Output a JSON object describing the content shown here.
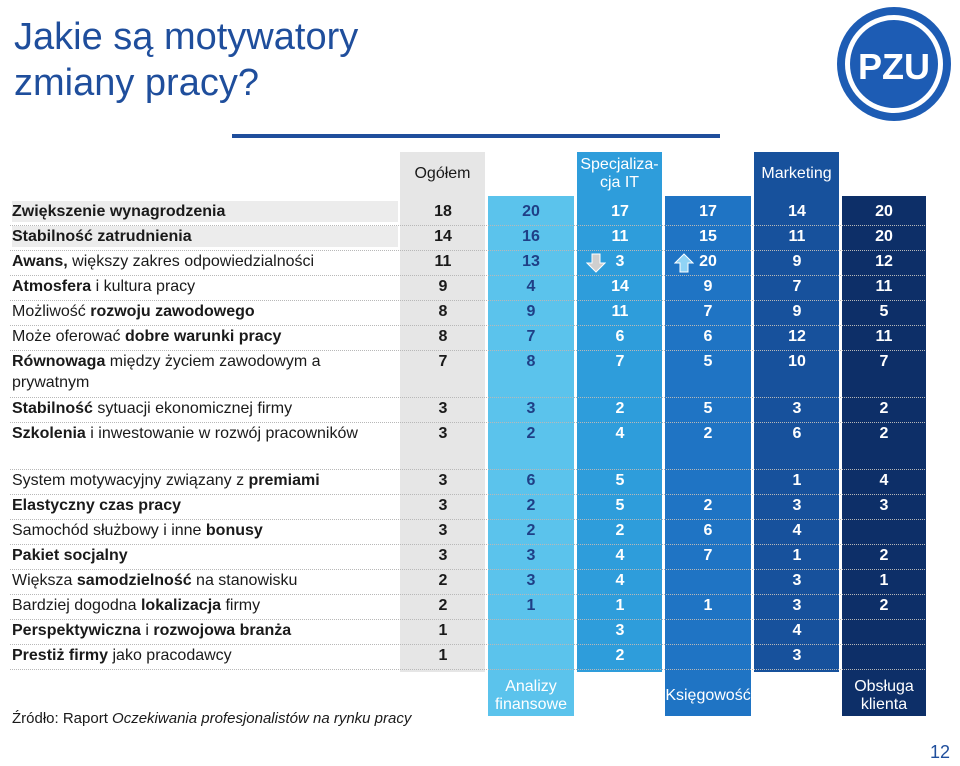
{
  "title": "Jakie są motywatory zmiany pracy?",
  "logo_text": "PZU",
  "headers_top": {
    "ogolem": "Ogółem",
    "it": "Specjaliza-cja IT",
    "marketing": "Marketing"
  },
  "headers_bottom": {
    "analizy": "Analizy finansowe",
    "ksiegowosc": "Księgowość",
    "obsluga": "Obsługa klienta"
  },
  "rows": [
    {
      "label_parts": [
        {
          "t": "Zwiększenie wynagrodzenia",
          "b": true
        }
      ],
      "values": [
        "18",
        "20",
        "17",
        "17",
        "14",
        "20"
      ]
    },
    {
      "label_parts": [
        {
          "t": "Stabilność zatrudnienia",
          "b": true
        }
      ],
      "values": [
        "14",
        "16",
        "11",
        "15",
        "11",
        "20"
      ]
    },
    {
      "label_parts": [
        {
          "t": "Awans,",
          "b": true
        },
        {
          "t": " większy zakres odpowiedzialności",
          "b": false
        }
      ],
      "values": [
        "11",
        "13",
        "3",
        "20",
        "9",
        "12"
      ]
    },
    {
      "label_parts": [
        {
          "t": "Atmosfera",
          "b": true
        },
        {
          "t": " i kultura pracy",
          "b": false
        }
      ],
      "values": [
        "9",
        "4",
        "14",
        "9",
        "7",
        "11"
      ]
    },
    {
      "label_parts": [
        {
          "t": "Możliwość ",
          "b": false
        },
        {
          "t": "rozwoju zawodowego",
          "b": true
        }
      ],
      "values": [
        "8",
        "9",
        "11",
        "7",
        "9",
        "5"
      ]
    },
    {
      "label_parts": [
        {
          "t": "Może oferować ",
          "b": false
        },
        {
          "t": "dobre warunki pracy",
          "b": true
        }
      ],
      "values": [
        "8",
        "7",
        "6",
        "6",
        "12",
        "11"
      ]
    },
    {
      "label_parts": [
        {
          "t": "Równowaga",
          "b": true
        },
        {
          "t": " między życiem zawodowym a prywatnym",
          "b": false
        }
      ],
      "values": [
        "7",
        "8",
        "7",
        "5",
        "10",
        "7"
      ]
    },
    {
      "label_parts": [
        {
          "t": "Stabilność",
          "b": true
        },
        {
          "t": " sytuacji ekonomicznej firmy",
          "b": false
        }
      ],
      "values": [
        "3",
        "3",
        "2",
        "5",
        "3",
        "2"
      ]
    },
    {
      "label_parts": [
        {
          "t": "Szkolenia",
          "b": true
        },
        {
          "t": " i inwestowanie w  rozwój pracowników",
          "b": false
        }
      ],
      "values": [
        "3",
        "2",
        "4",
        "2",
        "6",
        "2"
      ]
    },
    {
      "label_parts": [
        {
          "t": "System motywacyjny  związany z ",
          "b": false
        },
        {
          "t": "premiami",
          "b": true
        }
      ],
      "values": [
        "3",
        "6",
        "5",
        "",
        "1",
        "4"
      ]
    },
    {
      "label_parts": [
        {
          "t": "Elastyczny czas pracy",
          "b": true
        }
      ],
      "values": [
        "3",
        "2",
        "5",
        "2",
        "3",
        "3"
      ]
    },
    {
      "label_parts": [
        {
          "t": "Samochód służbowy i inne ",
          "b": false
        },
        {
          "t": "bonusy",
          "b": true
        }
      ],
      "values": [
        "3",
        "2",
        "2",
        "6",
        "4",
        ""
      ]
    },
    {
      "label_parts": [
        {
          "t": "Pakiet socjalny",
          "b": true
        }
      ],
      "values": [
        "3",
        "3",
        "4",
        "7",
        "1",
        "2"
      ]
    },
    {
      "label_parts": [
        {
          "t": "Większa ",
          "b": false
        },
        {
          "t": "samodzielność",
          "b": true
        },
        {
          "t": " na  stanowisku",
          "b": false
        }
      ],
      "values": [
        "2",
        "3",
        "4",
        "",
        "3",
        "1"
      ]
    },
    {
      "label_parts": [
        {
          "t": "Bardziej dogodna ",
          "b": false
        },
        {
          "t": "lokalizacja",
          "b": true
        },
        {
          "t": " firmy",
          "b": false
        }
      ],
      "values": [
        "2",
        "1",
        "1",
        "1",
        "3",
        "2"
      ]
    },
    {
      "label_parts": [
        {
          "t": "Perspektywiczna",
          "b": true
        },
        {
          "t": " i ",
          "b": false
        },
        {
          "t": "rozwojowa branża",
          "b": true
        }
      ],
      "values": [
        "1",
        "",
        "3",
        "",
        "4",
        ""
      ]
    },
    {
      "label_parts": [
        {
          "t": "Prestiż firmy",
          "b": true
        },
        {
          "t": " jako pracodawcy",
          "b": false
        }
      ],
      "values": [
        "1",
        "",
        "2",
        "",
        "3",
        ""
      ]
    }
  ],
  "source": {
    "prefix": "Źródło: Raport ",
    "title": "Oczekiwania profesjonalistów na rynku pracy"
  },
  "page_number": "12",
  "colors": {
    "ogolem": "#e6e6e6",
    "analizy": "#5bc3ec",
    "it": "#2e9ddb",
    "ksiegowosc": "#1f74c4",
    "marketing": "#17519c",
    "obsluga": "#0d2f68",
    "title": "#1f4e9c"
  },
  "arrows": [
    {
      "row": 2,
      "col": 2,
      "direction": "down"
    },
    {
      "row": 2,
      "col": 3,
      "direction": "up"
    }
  ]
}
